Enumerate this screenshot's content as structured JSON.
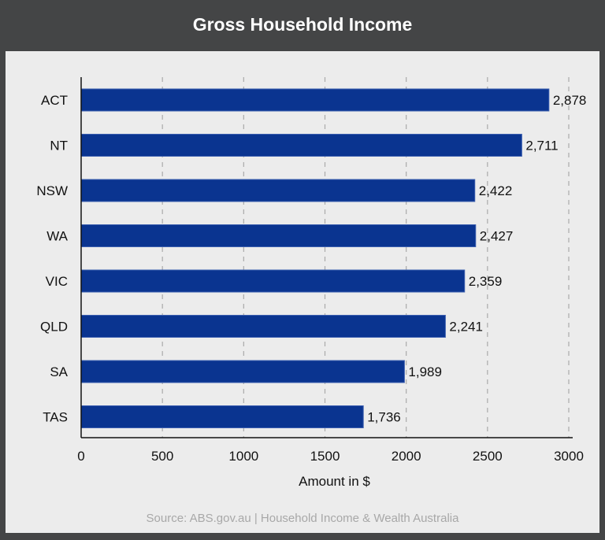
{
  "chart_data": {
    "type": "bar",
    "orientation": "horizontal",
    "title": "Gross Household Income",
    "categories": [
      "ACT",
      "NT",
      "NSW",
      "WA",
      "VIC",
      "QLD",
      "SA",
      "TAS"
    ],
    "values": [
      2878,
      2711,
      2422,
      2427,
      2359,
      2241,
      1989,
      1736
    ],
    "data_labels": [
      "2,878",
      "2,711",
      "2,422",
      "2,427",
      "2,359",
      "2,241",
      "1,989",
      "1,736"
    ],
    "xlabel": "Amount in $",
    "ylabel": "",
    "xlim": [
      0,
      3000
    ],
    "xticks": [
      0,
      500,
      1000,
      1500,
      2000,
      2500,
      3000
    ],
    "grid": "vertical dashed",
    "bar_color": "#0a3490",
    "source": "Source: ABS.gov.au | Household Income & Wealth Australia"
  }
}
